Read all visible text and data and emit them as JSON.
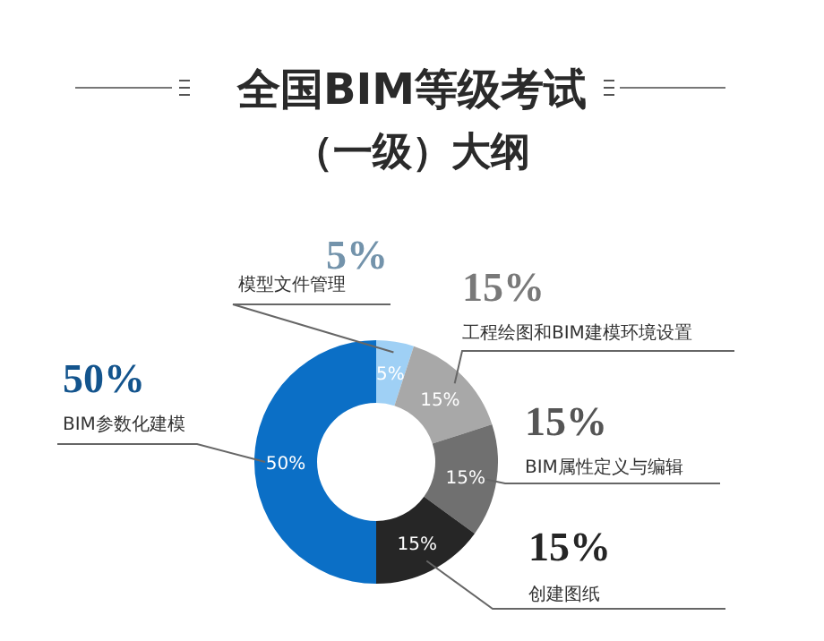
{
  "chart_data": {
    "type": "donut",
    "title": "全国BIM等级考试",
    "subtitle": "（一级）大纲",
    "categories": [
      "模型文件管理",
      "工程绘图和BIM建模环境设置",
      "BIM属性定义与编辑",
      "创建图纸",
      "BIM参数化建模"
    ],
    "values": [
      5,
      15,
      15,
      15,
      50
    ],
    "colors": [
      "#9fd0f5",
      "#a8a8a8",
      "#707070",
      "#262626",
      "#0b6fc6"
    ],
    "value_labels": [
      "5%",
      "15%",
      "15%",
      "15%",
      "50%"
    ]
  }
}
